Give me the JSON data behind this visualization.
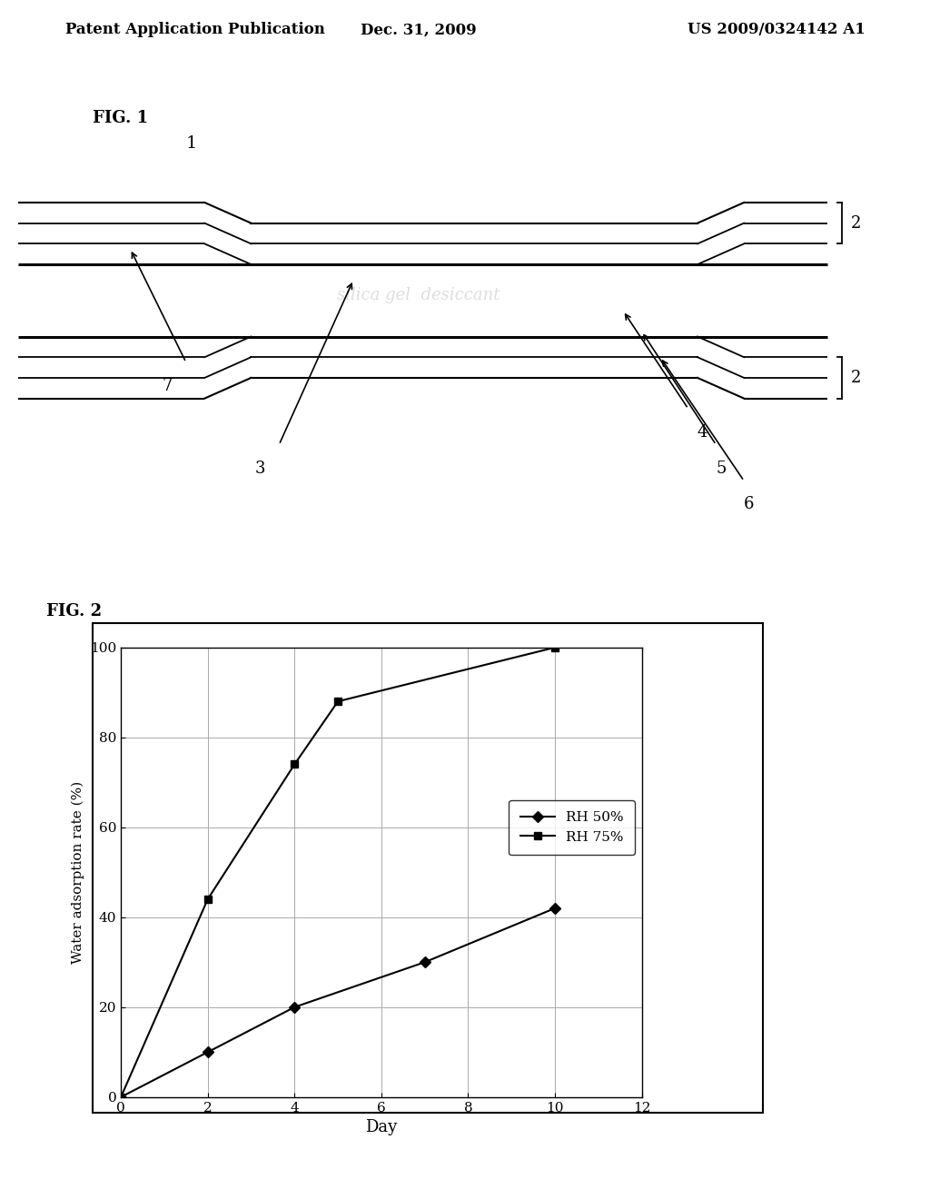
{
  "header_left": "Patent Application Publication",
  "header_center": "Dec. 31, 2009",
  "header_right": "US 2009/0324142 A1",
  "fig1_label": "FIG. 1",
  "fig1_number_label": "1",
  "fig2_label": "FIG. 2",
  "rh50_days": [
    0,
    2,
    4,
    7,
    10
  ],
  "rh50_values": [
    0,
    10,
    20,
    30,
    42
  ],
  "rh75_days": [
    0,
    2,
    4,
    5,
    10
  ],
  "rh75_values": [
    0,
    44,
    74,
    88,
    100
  ],
  "xlabel": "Day",
  "ylabel": "Water adsorption rate (%)",
  "xlim": [
    0,
    12
  ],
  "ylim": [
    0,
    100
  ],
  "xticks": [
    0,
    2,
    4,
    6,
    8,
    10,
    12
  ],
  "yticks": [
    0,
    20,
    40,
    60,
    80,
    100
  ],
  "legend_rh50": "RH 50%",
  "legend_rh75": "RH 75%",
  "bg_color": "#ffffff",
  "line_color": "#000000"
}
